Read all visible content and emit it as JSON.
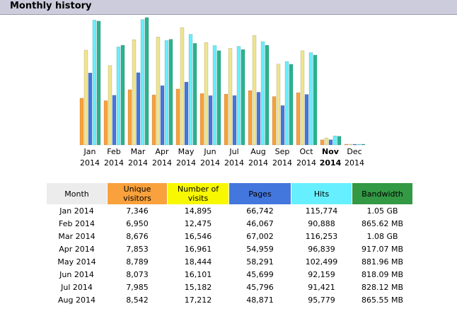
{
  "header": {
    "title": "Monthly history"
  },
  "chart_data": {
    "type": "bar",
    "title": "Monthly history",
    "categories": [
      "Jan 2014",
      "Feb 2014",
      "Mar 2014",
      "Apr 2014",
      "May 2014",
      "Jun 2014",
      "Jul 2014",
      "Aug 2014",
      "Sep 2014",
      "Oct 2014",
      "Nov 2014",
      "Dec 2014"
    ],
    "month_labels": [
      "Jan",
      "Feb",
      "Mar",
      "Apr",
      "May",
      "Jun",
      "Jul",
      "Aug",
      "Sep",
      "Oct",
      "Nov",
      "Dec"
    ],
    "year_labels": [
      "2014",
      "2014",
      "2014",
      "2014",
      "2014",
      "2014",
      "2014",
      "2014",
      "2014",
      "2014",
      "2014",
      "2014"
    ],
    "current_month_index": 10,
    "series": [
      {
        "name": "Unique visitors",
        "values": [
          7346,
          6950,
          8676,
          7853,
          8789,
          8073,
          7985,
          8542,
          7600,
          8200,
          800,
          60
        ]
      },
      {
        "name": "Number of visits",
        "values": [
          14895,
          12475,
          16546,
          16961,
          18444,
          16101,
          15182,
          17212,
          12700,
          14800,
          1100,
          80
        ]
      },
      {
        "name": "Pages",
        "values": [
          66742,
          46067,
          67002,
          54959,
          58291,
          45699,
          45796,
          48871,
          36500,
          46800,
          4800,
          300
        ]
      },
      {
        "name": "Hits",
        "values": [
          115774,
          90888,
          116253,
          96839,
          102499,
          92159,
          91421,
          95779,
          77300,
          85600,
          8400,
          600
        ]
      },
      {
        "name": "Bandwidth",
        "values": [
          1.05,
          865.62,
          1.08,
          917.07,
          881.96,
          818.09,
          828.12,
          865.55,
          700,
          780,
          75,
          5
        ]
      }
    ],
    "bandwidth_units": [
      "GB",
      "MB",
      "GB",
      "MB",
      "MB",
      "MB",
      "MB",
      "MB",
      "MB",
      "MB",
      "MB",
      "MB"
    ],
    "colors": [
      "#f9a13c",
      "#f0e58c",
      "#4477dd",
      "#66f0ff",
      "#2bb38c"
    ],
    "ymax_visits": 20000,
    "ymax_pages": 118000,
    "ymax_bandwidth_mb": 1105
  },
  "table": {
    "headers": [
      "Month",
      "Unique\nvisitors",
      "Number of\nvisits",
      "Pages",
      "Hits",
      "Bandwidth"
    ],
    "rows": [
      [
        "Jan 2014",
        "7,346",
        "14,895",
        "66,742",
        "115,774",
        "1.05 GB"
      ],
      [
        "Feb 2014",
        "6,950",
        "12,475",
        "46,067",
        "90,888",
        "865.62 MB"
      ],
      [
        "Mar 2014",
        "8,676",
        "16,546",
        "67,002",
        "116,253",
        "1.08 GB"
      ],
      [
        "Apr 2014",
        "7,853",
        "16,961",
        "54,959",
        "96,839",
        "917.07 MB"
      ],
      [
        "May 2014",
        "8,789",
        "18,444",
        "58,291",
        "102,499",
        "881.96 MB"
      ],
      [
        "Jun 2014",
        "8,073",
        "16,101",
        "45,699",
        "92,159",
        "818.09 MB"
      ],
      [
        "Jul 2014",
        "7,985",
        "15,182",
        "45,796",
        "91,421",
        "828.12 MB"
      ],
      [
        "Aug 2014",
        "8,542",
        "17,212",
        "48,871",
        "95,779",
        "865.55 MB"
      ]
    ]
  }
}
